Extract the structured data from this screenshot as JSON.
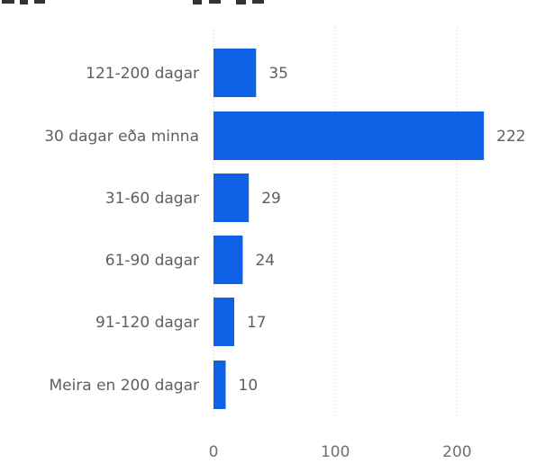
{
  "chart_data": {
    "type": "bar",
    "orientation": "horizontal",
    "title": "",
    "xlabel": "",
    "ylabel": "",
    "categories": [
      "121-200 dagar",
      "30 dagar eða minna",
      "31-60 dagar",
      "61-90 dagar",
      "91-120 dagar",
      "Meira en 200 dagar"
    ],
    "values": [
      35,
      222,
      29,
      24,
      17,
      10
    ],
    "data_labels": [
      "35",
      "222",
      "29",
      "24",
      "17",
      "10"
    ],
    "xlim": [
      0,
      250
    ],
    "xticks": [
      0,
      100,
      200
    ],
    "xtick_labels": [
      "0",
      "100",
      "200"
    ],
    "grid": "vertical dotted",
    "legend": "none",
    "bar_color": "#0f62e6"
  }
}
